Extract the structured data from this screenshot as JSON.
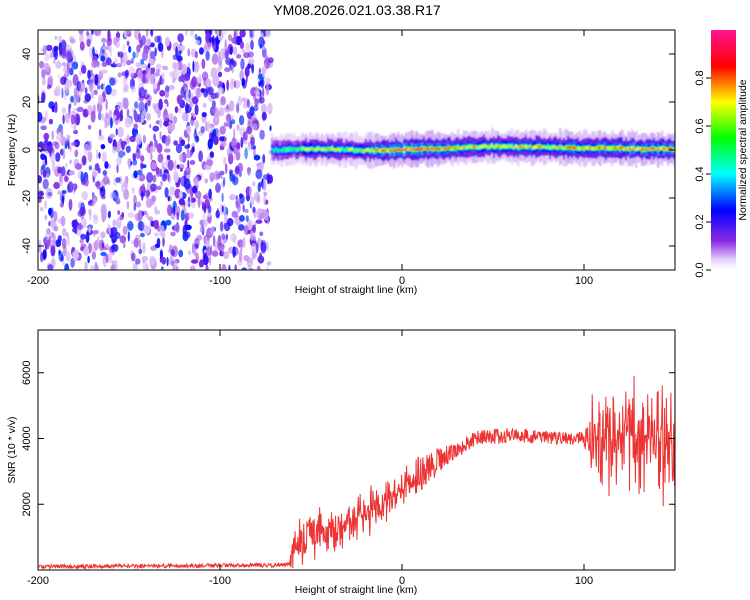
{
  "title": "YM08.2026.021.03.38.R17",
  "chart_data": [
    {
      "type": "heatmap",
      "xlabel": "Height of straight line (km)",
      "ylabel": "Frequency (Hz)",
      "xlim": [
        -200,
        150
      ],
      "ylim": [
        -50,
        50
      ],
      "xticks": [
        -200,
        -100,
        0,
        100
      ],
      "yticks": [
        -40,
        -20,
        0,
        20,
        40
      ],
      "colorbar": {
        "label": "Normalized spectral amplitude",
        "range": [
          0,
          1
        ],
        "ticks": [
          0.0,
          0.2,
          0.4,
          0.6,
          0.8
        ],
        "colormap": "rainbow",
        "colors": [
          "#ffffff",
          "#8a2be2",
          "#0000ff",
          "#00ffff",
          "#00ff00",
          "#ffff00",
          "#ff0000",
          "#ff1493"
        ]
      },
      "noise_region": {
        "x_range": [
          -200,
          -72
        ],
        "frequency_range": [
          -50,
          50
        ],
        "amplitude_range": [
          0.05,
          0.3
        ]
      },
      "signal_band": {
        "x_range": [
          -72,
          150
        ],
        "center_frequency": [
          {
            "x": -72,
            "y": 0.0
          },
          {
            "x": -40,
            "y": 0.5
          },
          {
            "x": -20,
            "y": -0.3
          },
          {
            "x": 0,
            "y": 0.2
          },
          {
            "x": 50,
            "y": 1.5
          },
          {
            "x": 100,
            "y": 0.8
          },
          {
            "x": 150,
            "y": 0.3
          }
        ],
        "peak_amplitude": [
          {
            "x": -72,
            "y": 0.5
          },
          {
            "x": -40,
            "y": 0.8
          },
          {
            "x": -30,
            "y": 0.65
          },
          {
            "x": -15,
            "y": 0.85
          },
          {
            "x": 0,
            "y": 0.95
          },
          {
            "x": 20,
            "y": 0.85
          },
          {
            "x": 50,
            "y": 0.75
          },
          {
            "x": 90,
            "y": 0.8
          },
          {
            "x": 110,
            "y": 0.9
          },
          {
            "x": 150,
            "y": 0.85
          }
        ]
      }
    },
    {
      "type": "line",
      "xlabel": "Height of straight line (km)",
      "ylabel": "SNR (10 * v/v)",
      "xlim": [
        -200,
        150
      ],
      "ylim": [
        0,
        7300
      ],
      "xticks": [
        -200,
        -100,
        0,
        100
      ],
      "yticks": [
        2000,
        4000,
        6000
      ],
      "series": [
        {
          "color": "#ee3333",
          "trend": [
            {
              "x": -200,
              "y": 100
            },
            {
              "x": -62,
              "y": 150
            },
            {
              "x": -58,
              "y": 900
            },
            {
              "x": -40,
              "y": 1100
            },
            {
              "x": -20,
              "y": 1700
            },
            {
              "x": 0,
              "y": 2500
            },
            {
              "x": 20,
              "y": 3300
            },
            {
              "x": 40,
              "y": 4000
            },
            {
              "x": 60,
              "y": 4100
            },
            {
              "x": 100,
              "y": 4000
            },
            {
              "x": 150,
              "y": 4000
            }
          ],
          "noise_amplitude": [
            {
              "x": -200,
              "y": 60
            },
            {
              "x": -62,
              "y": 60
            },
            {
              "x": -58,
              "y": 900
            },
            {
              "x": -20,
              "y": 900
            },
            {
              "x": 0,
              "y": 700
            },
            {
              "x": 30,
              "y": 250
            },
            {
              "x": 100,
              "y": 200
            },
            {
              "x": 104,
              "y": 1800
            },
            {
              "x": 150,
              "y": 2200
            }
          ]
        }
      ]
    }
  ]
}
